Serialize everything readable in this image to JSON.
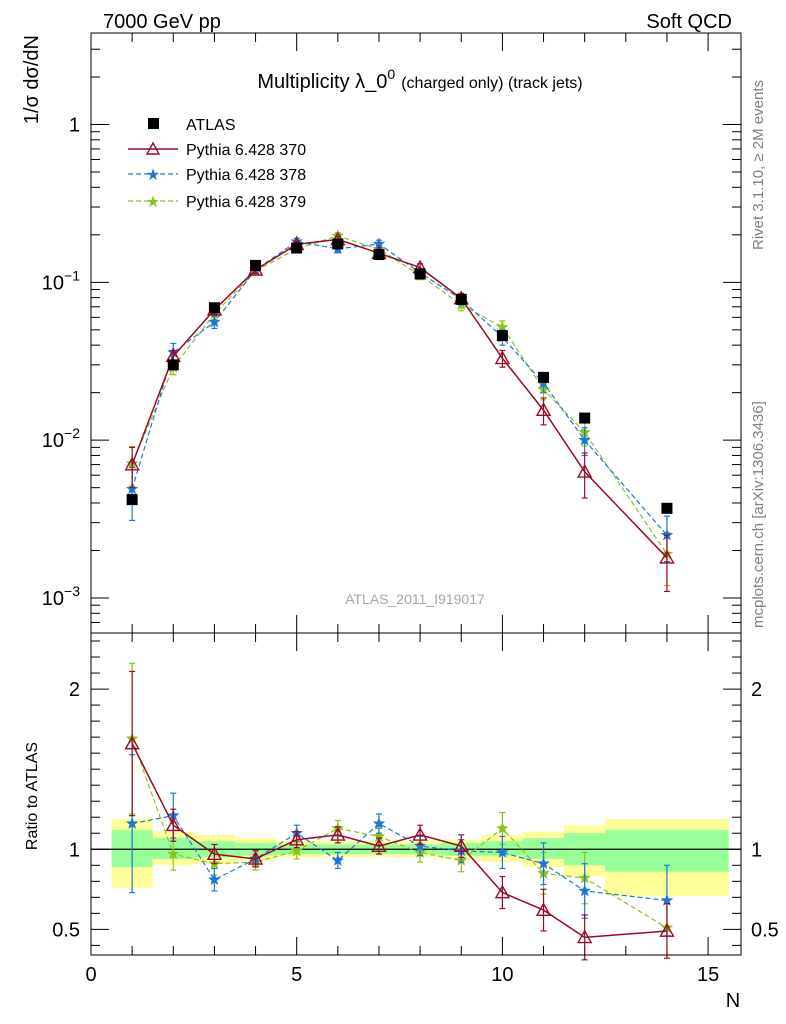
{
  "header": {
    "left": "7000 GeV pp",
    "right": "Soft QCD"
  },
  "side_labels": {
    "rivet": "Rivet 3.1.10, ≥ 2M events",
    "mcplots": "mcplots.cern.ch [arXiv:1306.3436]"
  },
  "colors": {
    "atlas": "#000000",
    "p370": "#9b0a25",
    "p378": "#1f77d4",
    "p379": "#8cc21e",
    "band_inner": "#99ff99",
    "band_outer": "#ffff99"
  },
  "chart_data": [
    {
      "type": "scatter",
      "title_main": "Multiplicity λ_0",
      "title_sup": "0",
      "title_rest": "(charged only) (track jets)",
      "ylabel": "1/σ dσ/dN",
      "yscale": "log",
      "ylim": [
        0.0006,
        3.8
      ],
      "xlim": [
        0,
        15.8
      ],
      "y_ticks": [
        {
          "value": 0.001,
          "label": "10",
          "sup": "−3"
        },
        {
          "value": 0.01,
          "label": "10",
          "sup": "−2"
        },
        {
          "value": 0.1,
          "label": "10",
          "sup": "−1"
        },
        {
          "value": 1,
          "label": "1",
          "sup": ""
        }
      ],
      "watermark": "ATLAS_2011_I919017",
      "legend": [
        "ATLAS",
        "Pythia 6.428 370",
        "Pythia 6.428 378",
        "Pythia 6.428 379"
      ],
      "legend_position": "top-left",
      "series": [
        {
          "name": "ATLAS",
          "style": "square",
          "x": [
            1,
            2,
            3,
            4,
            5,
            6,
            7,
            8,
            9,
            10,
            11,
            12,
            14
          ],
          "y": [
            0.0042,
            0.03,
            0.069,
            0.128,
            0.165,
            0.175,
            0.15,
            0.113,
            0.078,
            0.046,
            0.025,
            0.0138,
            0.0037
          ]
        },
        {
          "name": "Pythia 6.428 370",
          "style": "triangle",
          "x": [
            1,
            2,
            3,
            4,
            5,
            6,
            7,
            8,
            9,
            10,
            11,
            12,
            14
          ],
          "y": [
            0.007,
            0.034,
            0.067,
            0.12,
            0.174,
            0.187,
            0.153,
            0.124,
            0.079,
            0.033,
            0.0155,
            0.0063,
            0.0018
          ],
          "err": [
            0.002,
            0.003,
            0.004,
            0.006,
            0.008,
            0.008,
            0.008,
            0.007,
            0.006,
            0.004,
            0.003,
            0.002,
            0.0007
          ]
        },
        {
          "name": "Pythia 6.428 378",
          "style": "star",
          "x": [
            1,
            2,
            3,
            4,
            5,
            6,
            7,
            8,
            9,
            10,
            11,
            12,
            14
          ],
          "y": [
            0.0049,
            0.036,
            0.056,
            0.12,
            0.181,
            0.163,
            0.175,
            0.115,
            0.078,
            0.045,
            0.023,
            0.01,
            0.0025
          ],
          "err": [
            0.0018,
            0.005,
            0.005,
            0.006,
            0.009,
            0.009,
            0.01,
            0.007,
            0.006,
            0.005,
            0.003,
            0.002,
            0.0008
          ]
        },
        {
          "name": "Pythia 6.428 379",
          "style": "star",
          "x": [
            1,
            2,
            3,
            4,
            5,
            6,
            7,
            8,
            9,
            10,
            11,
            12,
            14
          ],
          "y": [
            0.0071,
            0.029,
            0.063,
            0.118,
            0.163,
            0.197,
            0.162,
            0.111,
            0.072,
            0.052,
            0.021,
            0.0112,
            0.0019
          ],
          "err": [
            0.002,
            0.003,
            0.005,
            0.006,
            0.008,
            0.009,
            0.008,
            0.007,
            0.006,
            0.005,
            0.003,
            0.002,
            0.0007
          ]
        }
      ]
    },
    {
      "type": "scatter",
      "ylabel": "Ratio to ATLAS",
      "xlabel": "N",
      "ylim": [
        0.34,
        2.35
      ],
      "xlim": [
        0,
        15.8
      ],
      "x_ticks": [
        0,
        5,
        10,
        15
      ],
      "y_ticks": [
        0.5,
        1,
        2
      ],
      "reference_line": 1,
      "band_bins": [
        {
          "x0": 0.5,
          "x1": 1.5,
          "inner": [
            0.89,
            1.12
          ],
          "outer": [
            0.76,
            1.19
          ]
        },
        {
          "x0": 1.5,
          "x1": 2.5,
          "inner": [
            0.94,
            1.07
          ],
          "outer": [
            0.9,
            1.11
          ]
        },
        {
          "x0": 2.5,
          "x1": 3.5,
          "inner": [
            0.95,
            1.05
          ],
          "outer": [
            0.91,
            1.09
          ]
        },
        {
          "x0": 3.5,
          "x1": 4.5,
          "inner": [
            0.96,
            1.04
          ],
          "outer": [
            0.93,
            1.07
          ]
        },
        {
          "x0": 4.5,
          "x1": 5.5,
          "inner": [
            0.97,
            1.03
          ],
          "outer": [
            0.95,
            1.05
          ]
        },
        {
          "x0": 5.5,
          "x1": 6.5,
          "inner": [
            0.97,
            1.03
          ],
          "outer": [
            0.95,
            1.05
          ]
        },
        {
          "x0": 6.5,
          "x1": 7.5,
          "inner": [
            0.97,
            1.03
          ],
          "outer": [
            0.95,
            1.05
          ]
        },
        {
          "x0": 7.5,
          "x1": 8.5,
          "inner": [
            0.97,
            1.03
          ],
          "outer": [
            0.95,
            1.05
          ]
        },
        {
          "x0": 8.5,
          "x1": 9.5,
          "inner": [
            0.96,
            1.04
          ],
          "outer": [
            0.94,
            1.06
          ]
        },
        {
          "x0": 9.5,
          "x1": 10.5,
          "inner": [
            0.96,
            1.05
          ],
          "outer": [
            0.92,
            1.09
          ]
        },
        {
          "x0": 10.5,
          "x1": 11.5,
          "inner": [
            0.94,
            1.07
          ],
          "outer": [
            0.89,
            1.11
          ]
        },
        {
          "x0": 11.5,
          "x1": 12.5,
          "inner": [
            0.9,
            1.1
          ],
          "outer": [
            0.83,
            1.15
          ]
        },
        {
          "x0": 12.5,
          "x1": 15.5,
          "inner": [
            0.86,
            1.12
          ],
          "outer": [
            0.71,
            1.19
          ]
        }
      ],
      "series": [
        {
          "name": "Pythia 6.428 370",
          "x": [
            1,
            2,
            3,
            4,
            5,
            6,
            7,
            8,
            9,
            10,
            11,
            12,
            14
          ],
          "y": [
            1.66,
            1.15,
            0.97,
            0.94,
            1.06,
            1.09,
            1.02,
            1.09,
            1.02,
            0.73,
            0.62,
            0.45,
            0.49
          ],
          "err": [
            0.45,
            0.1,
            0.06,
            0.05,
            0.05,
            0.05,
            0.05,
            0.06,
            0.07,
            0.1,
            0.13,
            0.14,
            0.17
          ]
        },
        {
          "name": "Pythia 6.428 378",
          "x": [
            1,
            2,
            3,
            4,
            5,
            6,
            7,
            8,
            9,
            10,
            11,
            12,
            14
          ],
          "y": [
            1.16,
            1.21,
            0.81,
            0.94,
            1.1,
            0.93,
            1.16,
            1.02,
            0.99,
            0.98,
            0.91,
            0.74,
            0.68
          ],
          "err": [
            0.43,
            0.14,
            0.07,
            0.05,
            0.05,
            0.05,
            0.06,
            0.06,
            0.07,
            0.1,
            0.13,
            0.17,
            0.22
          ]
        },
        {
          "name": "Pythia 6.428 379",
          "x": [
            1,
            2,
            3,
            4,
            5,
            6,
            7,
            8,
            9,
            10,
            11,
            12,
            14
          ],
          "y": [
            1.69,
            0.97,
            0.91,
            0.92,
            0.99,
            1.13,
            1.08,
            0.98,
            0.93,
            1.13,
            0.85,
            0.82,
            0.51
          ],
          "err": [
            0.47,
            0.1,
            0.07,
            0.05,
            0.05,
            0.05,
            0.05,
            0.06,
            0.07,
            0.1,
            0.13,
            0.16,
            0.17
          ]
        }
      ]
    }
  ]
}
